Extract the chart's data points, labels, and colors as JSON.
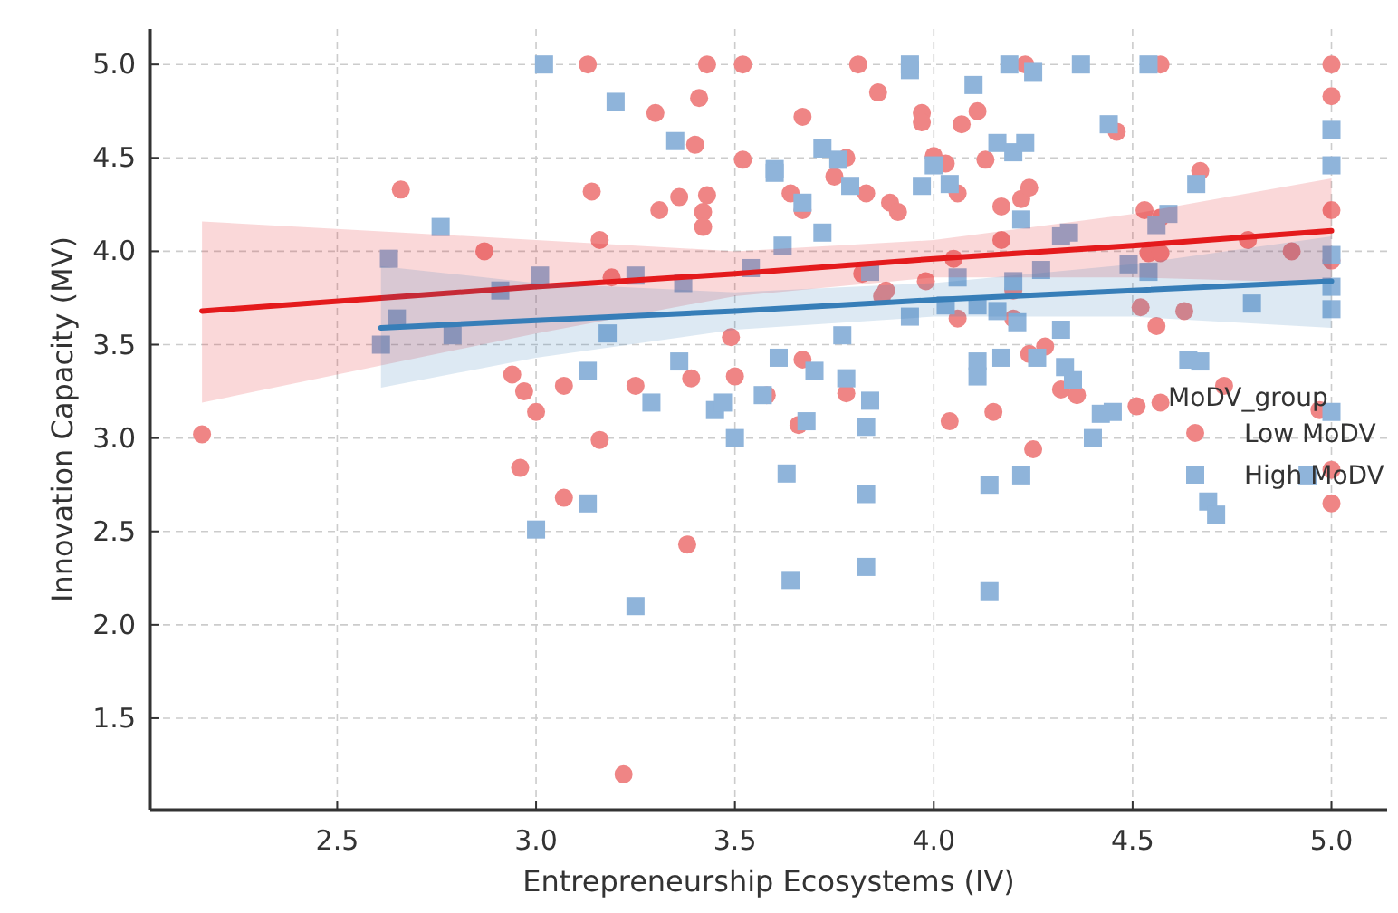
{
  "chart_data": {
    "type": "scatter",
    "xlabel": "Entrepreneurship Ecosystems (IV)",
    "ylabel": "Innovation Capacity (MV)",
    "legend_title": "MoDV_group",
    "legend": "right",
    "grid": true,
    "xlim": [
      2.03,
      5.14
    ],
    "ylim": [
      1.01,
      5.19
    ],
    "xticks": [
      2.5,
      {
        "value": 3,
        "label": "3.0"
      },
      3.5,
      {
        "value": 4,
        "label": "4.0"
      },
      4.5,
      {
        "value": 5,
        "label": "5.0"
      }
    ],
    "yticks": [
      1.5,
      {
        "value": 2,
        "label": "2.0"
      },
      2.5,
      {
        "value": 3,
        "label": "3.0"
      },
      3.5,
      {
        "value": 4,
        "label": "4.0"
      },
      4.5,
      {
        "value": 5,
        "label": "5.0"
      }
    ],
    "series": [
      {
        "name": "Low MoDV",
        "marker": "circle",
        "color": "#ef8585",
        "x": [
          2.16,
          2.66,
          2.87,
          2.94,
          2.96,
          2.97,
          3.0,
          3.07,
          3.07,
          3.13,
          3.14,
          3.16,
          3.16,
          3.19,
          3.22,
          3.25,
          3.3,
          3.31,
          3.36,
          3.38,
          3.39,
          3.4,
          3.41,
          3.42,
          3.42,
          3.43,
          3.43,
          3.49,
          3.5,
          3.52,
          3.52,
          3.58,
          3.64,
          3.66,
          3.67,
          3.67,
          3.67,
          3.75,
          3.78,
          3.78,
          3.81,
          3.82,
          3.83,
          3.86,
          3.87,
          3.88,
          3.89,
          3.91,
          3.97,
          3.97,
          3.98,
          4.0,
          4.03,
          4.04,
          4.05,
          4.06,
          4.06,
          4.07,
          4.11,
          4.13,
          4.15,
          4.17,
          4.17,
          4.2,
          4.2,
          4.22,
          4.23,
          4.24,
          4.24,
          4.25,
          4.28,
          4.32,
          4.36,
          4.46,
          4.51,
          4.52,
          4.53,
          4.54,
          4.56,
          4.57,
          4.57,
          4.57,
          4.57,
          4.63,
          4.67,
          4.73,
          4.79,
          4.9,
          4.97,
          5.0,
          5.0,
          5.0,
          5.0,
          5.0,
          5.0
        ],
        "values": [
          3.02,
          4.33,
          4.0,
          3.34,
          2.84,
          3.25,
          3.14,
          3.28,
          2.68,
          5.0,
          4.32,
          4.06,
          2.99,
          3.86,
          1.2,
          3.28,
          4.74,
          4.22,
          4.29,
          2.43,
          3.32,
          4.57,
          4.82,
          4.21,
          4.13,
          5.0,
          4.3,
          3.54,
          3.33,
          5.0,
          4.49,
          3.23,
          4.31,
          3.07,
          4.72,
          4.22,
          3.42,
          4.4,
          4.5,
          3.24,
          5.0,
          3.88,
          4.31,
          4.85,
          3.76,
          3.79,
          4.26,
          4.21,
          4.74,
          4.69,
          3.84,
          4.51,
          4.47,
          3.09,
          3.96,
          4.31,
          3.64,
          4.68,
          4.75,
          4.49,
          3.14,
          4.24,
          4.06,
          3.79,
          3.64,
          4.28,
          5.0,
          4.34,
          3.45,
          2.94,
          3.49,
          3.26,
          3.23,
          4.64,
          3.17,
          3.7,
          4.22,
          3.99,
          3.6,
          5.0,
          4.18,
          3.99,
          3.19,
          3.68,
          4.43,
          3.28,
          4.06,
          4.0,
          3.15,
          5.0,
          4.83,
          4.22,
          3.95,
          2.83,
          2.65
        ]
      },
      {
        "name": "High MoDV",
        "marker": "square",
        "color": "#8fb4da",
        "x": [
          2.61,
          2.63,
          2.65,
          2.76,
          2.79,
          2.91,
          3.0,
          3.01,
          3.02,
          3.13,
          3.13,
          3.18,
          3.2,
          3.25,
          3.25,
          3.29,
          3.35,
          3.36,
          3.37,
          3.45,
          3.47,
          3.5,
          3.54,
          3.57,
          3.6,
          3.6,
          3.61,
          3.62,
          3.63,
          3.64,
          3.67,
          3.68,
          3.7,
          3.72,
          3.72,
          3.76,
          3.77,
          3.78,
          3.79,
          3.83,
          3.83,
          3.83,
          3.84,
          3.84,
          3.94,
          3.94,
          3.94,
          3.97,
          4.0,
          4.03,
          4.04,
          4.06,
          4.1,
          4.11,
          4.11,
          4.11,
          4.14,
          4.14,
          4.16,
          4.16,
          4.17,
          4.19,
          4.2,
          4.2,
          4.21,
          4.22,
          4.22,
          4.23,
          4.25,
          4.26,
          4.27,
          4.32,
          4.32,
          4.33,
          4.34,
          4.35,
          4.37,
          4.4,
          4.42,
          4.44,
          4.45,
          4.49,
          4.54,
          4.54,
          4.56,
          4.59,
          4.64,
          4.66,
          4.67,
          4.69,
          4.71,
          4.8,
          4.94,
          5.0,
          5.0,
          5.0,
          5.0,
          5.0,
          5.0
        ],
        "values": [
          3.5,
          3.96,
          3.64,
          4.13,
          3.55,
          3.79,
          2.51,
          3.87,
          5.0,
          3.36,
          2.65,
          3.56,
          4.8,
          3.87,
          2.1,
          3.19,
          4.59,
          3.41,
          3.83,
          3.15,
          3.19,
          3.0,
          3.91,
          3.23,
          4.44,
          4.42,
          3.43,
          4.03,
          2.81,
          2.24,
          4.26,
          3.09,
          3.36,
          4.55,
          4.1,
          4.49,
          3.55,
          3.32,
          4.35,
          3.06,
          2.7,
          2.31,
          3.89,
          3.2,
          5.0,
          4.97,
          3.65,
          4.35,
          4.46,
          3.71,
          4.36,
          3.86,
          4.89,
          3.71,
          3.41,
          3.33,
          2.75,
          2.18,
          3.68,
          4.58,
          3.43,
          5.0,
          4.53,
          3.84,
          3.62,
          4.17,
          2.8,
          4.58,
          4.96,
          3.43,
          3.9,
          4.08,
          3.58,
          3.38,
          4.1,
          3.31,
          5.0,
          3.0,
          3.13,
          4.68,
          3.14,
          3.93,
          5.0,
          3.89,
          4.14,
          4.2,
          3.42,
          4.36,
          3.41,
          2.66,
          2.59,
          3.72,
          2.8,
          4.65,
          4.46,
          3.98,
          3.81,
          3.69,
          3.14
        ]
      },
      {
        "type": "line",
        "color": "#e41a1c",
        "x": [
          2.16,
          3.0,
          3.5,
          4.0,
          4.5,
          5.0
        ],
        "values": [
          3.68,
          3.81,
          3.88,
          3.96,
          4.03,
          4.11
        ],
        "lower": [
          3.19,
          3.56,
          3.76,
          3.86,
          3.86,
          3.83
        ],
        "upper": [
          4.16,
          4.06,
          4.0,
          4.06,
          4.2,
          4.39
        ]
      },
      {
        "type": "line",
        "color": "#377eb8",
        "x": [
          2.61,
          3.0,
          3.5,
          4.0,
          4.5,
          5.0
        ],
        "values": [
          3.59,
          3.63,
          3.68,
          3.74,
          3.79,
          3.84
        ],
        "lower": [
          3.27,
          3.43,
          3.58,
          3.65,
          3.65,
          3.59
        ],
        "upper": [
          3.92,
          3.83,
          3.78,
          3.83,
          3.93,
          4.08
        ]
      }
    ]
  }
}
